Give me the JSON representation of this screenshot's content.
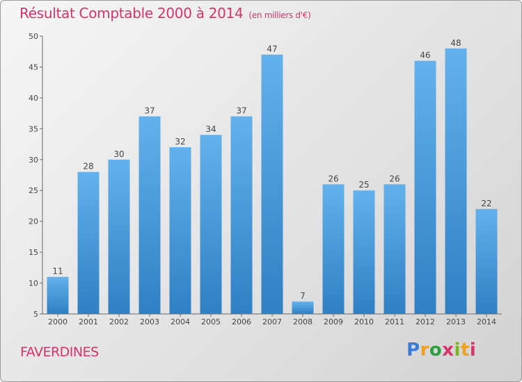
{
  "title": "Résultat Comptable 2000 à 2014",
  "title_unit": "(en milliers d'€)",
  "city": "FAVERDINES",
  "logo": {
    "parts": [
      "P",
      "r",
      "o",
      "x",
      "i",
      "t",
      "i"
    ]
  },
  "colors": {
    "bar_top": "#63b1ec",
    "bar_bottom": "#2f80c4",
    "title": "#d6336c"
  },
  "chart_data": {
    "type": "bar",
    "categories": [
      "2000",
      "2001",
      "2002",
      "2003",
      "2004",
      "2005",
      "2006",
      "2007",
      "2008",
      "2009",
      "2010",
      "2011",
      "2012",
      "2013",
      "2014"
    ],
    "values": [
      11,
      28,
      30,
      37,
      32,
      34,
      37,
      47,
      7,
      26,
      25,
      26,
      46,
      48,
      22
    ],
    "ylim": [
      5,
      50
    ],
    "yticks": [
      5,
      10,
      15,
      20,
      25,
      30,
      35,
      40,
      45,
      50
    ],
    "grid": false
  }
}
